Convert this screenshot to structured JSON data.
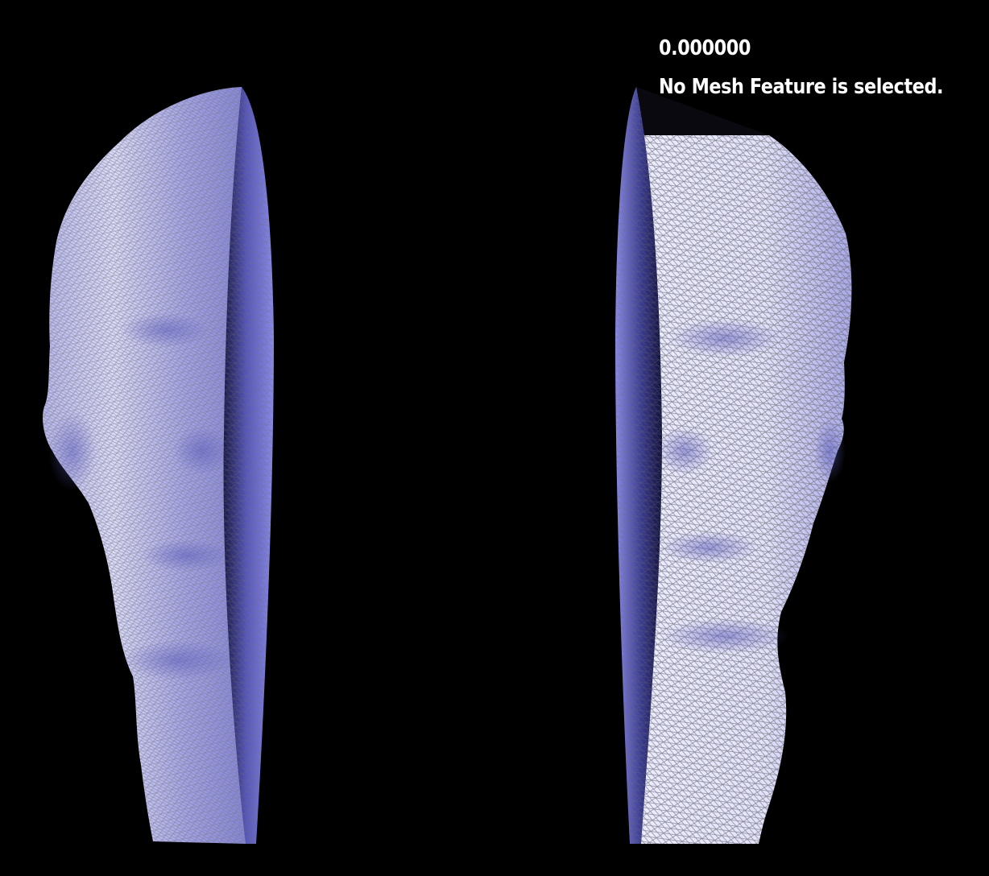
{
  "viewer": {
    "background_color": "#000000",
    "mesh_fill_color": "#e6e6ff",
    "mesh_shade_color": "#8c8ce6",
    "wire_color": "#7a7a82",
    "cut_face_color": "#7878dc",
    "cut_face_dark_color": "#14143c"
  },
  "hud": {
    "value": "0.000000",
    "status": "No Mesh Feature is selected."
  }
}
